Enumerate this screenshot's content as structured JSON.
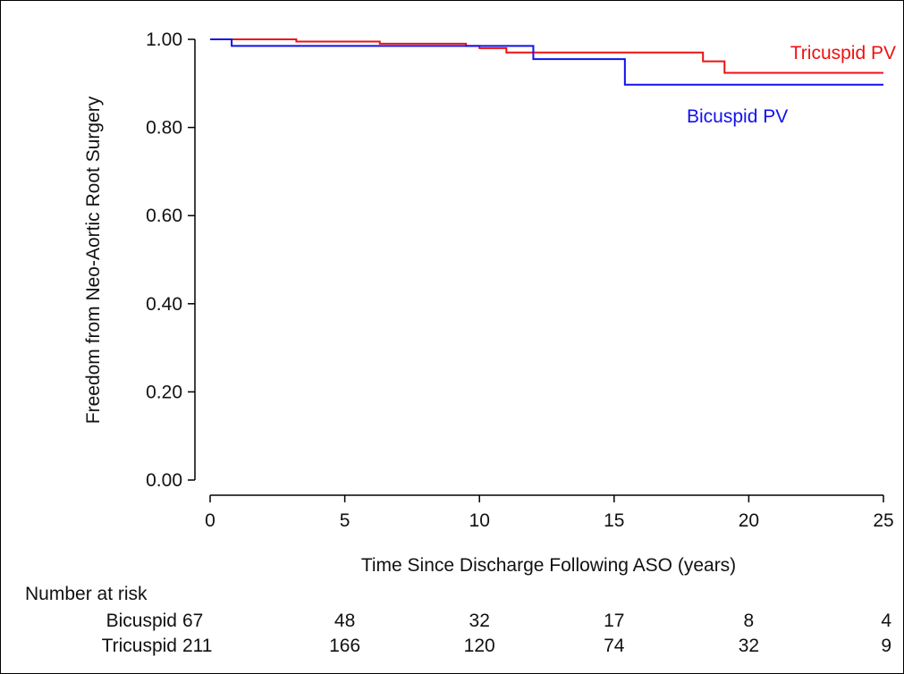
{
  "chart_data": {
    "type": "line",
    "subtype": "kaplan-meier step curve",
    "title": "",
    "xlabel": "Time Since Discharge Following ASO (years)",
    "ylabel": "Freedom from Neo-Aortic Root Surgery",
    "xlim": [
      0,
      25
    ],
    "ylim": [
      0,
      1
    ],
    "x_ticks": [
      0,
      5,
      10,
      15,
      20,
      25
    ],
    "x_tick_labels": [
      "0",
      "5",
      "10",
      "15",
      "20",
      "25"
    ],
    "y_ticks": [
      0,
      0.2,
      0.4,
      0.6,
      0.8,
      1.0
    ],
    "y_tick_labels": [
      "0.00",
      "0.20",
      "0.40",
      "0.60",
      "0.80",
      "1.00"
    ],
    "grid": false,
    "legend": "inline labels near curve ends",
    "series": [
      {
        "name": "Tricuspid PV",
        "color": "#ee1111",
        "steps": [
          [
            0,
            1.0
          ],
          [
            3.2,
            0.995
          ],
          [
            6.3,
            0.99
          ],
          [
            9.5,
            0.985
          ],
          [
            10.0,
            0.98
          ],
          [
            11.0,
            0.97
          ],
          [
            18.3,
            0.95
          ],
          [
            19.1,
            0.924
          ],
          [
            25,
            0.924
          ]
        ]
      },
      {
        "name": "Bicuspid PV",
        "color": "#1111ee",
        "steps": [
          [
            0,
            1.0
          ],
          [
            0.8,
            0.985
          ],
          [
            12.0,
            0.955
          ],
          [
            15.4,
            0.897
          ],
          [
            25,
            0.897
          ]
        ]
      }
    ],
    "risk_table": {
      "title": "Number at risk",
      "times": [
        0,
        5,
        10,
        15,
        20,
        25
      ],
      "rows": [
        {
          "label": "Bicuspid",
          "counts": [
            "67",
            "48",
            "32",
            "17",
            "8",
            "4"
          ]
        },
        {
          "label": "Tricuspid",
          "counts": [
            "211",
            "166",
            "120",
            "74",
            "32",
            "9"
          ]
        }
      ]
    }
  }
}
